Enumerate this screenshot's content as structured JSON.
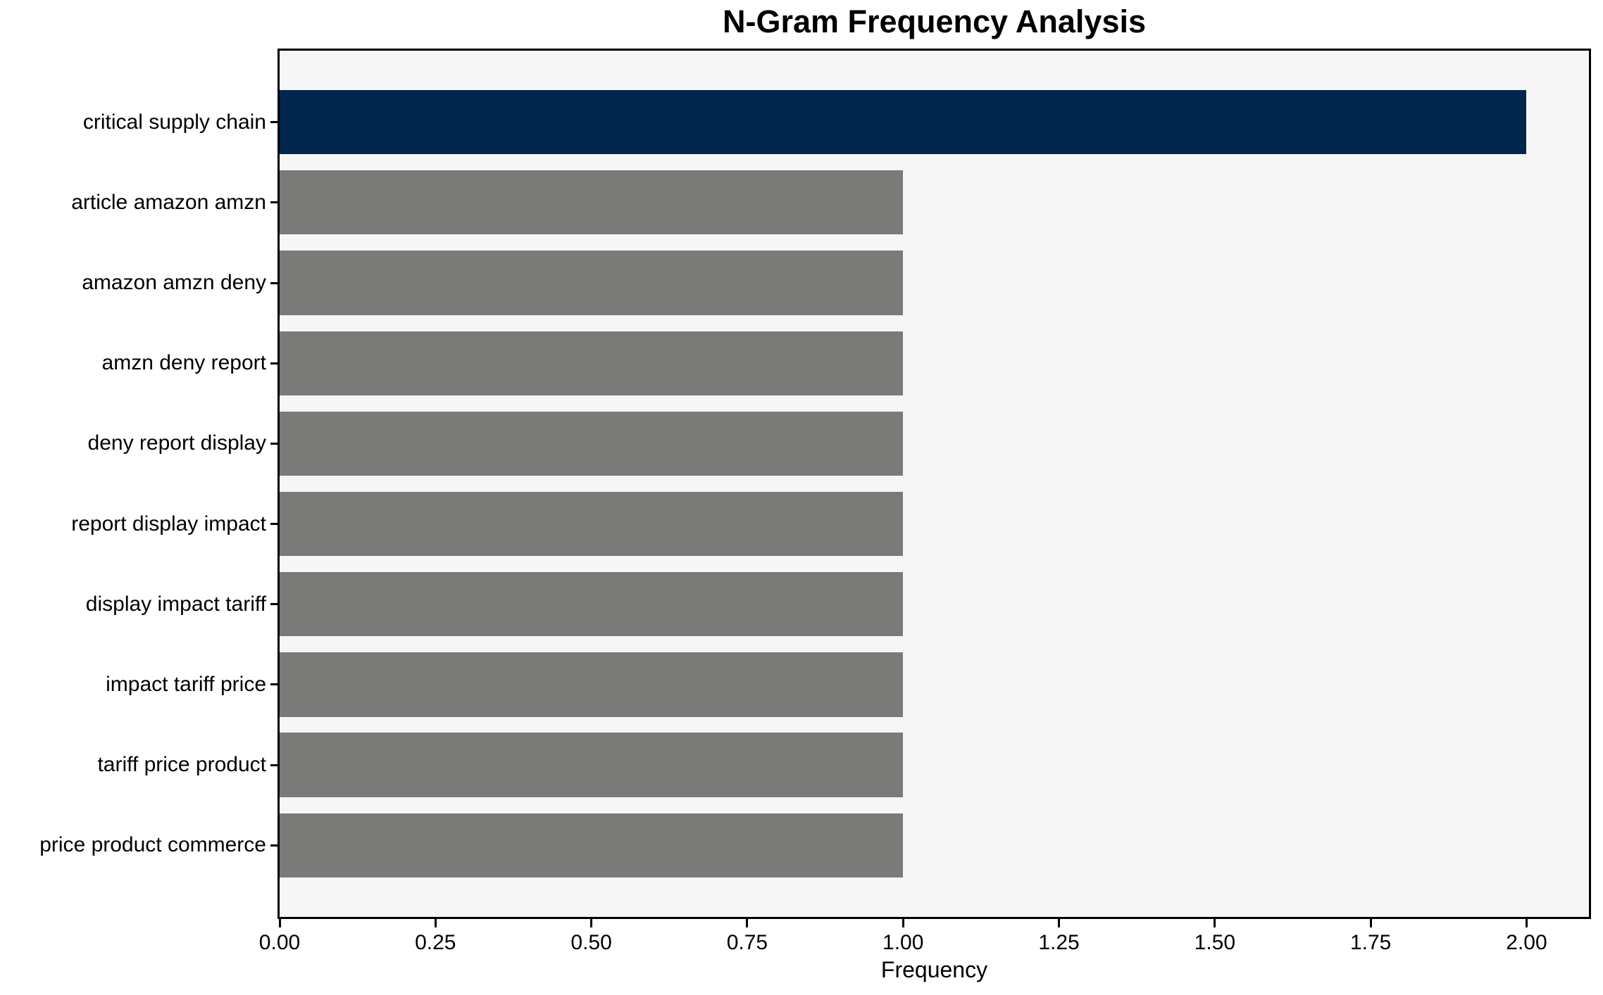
{
  "chart_data": {
    "type": "bar",
    "orientation": "horizontal",
    "title": "N-Gram Frequency Analysis",
    "xlabel": "Frequency",
    "ylabel": "",
    "categories": [
      "critical supply chain",
      "article amazon amzn",
      "amazon amzn deny",
      "amzn deny report",
      "deny report display",
      "report display impact",
      "display impact tariff",
      "impact tariff price",
      "tariff price product",
      "price product commerce"
    ],
    "values": [
      2.0,
      1.0,
      1.0,
      1.0,
      1.0,
      1.0,
      1.0,
      1.0,
      1.0,
      1.0
    ],
    "bar_colors": [
      "#02254e",
      "#7a7a78",
      "#7a7a78",
      "#7a7a78",
      "#7a7a78",
      "#7a7a78",
      "#7a7a78",
      "#7a7a78",
      "#7a7a78",
      "#7a7a78"
    ],
    "xlim": [
      0,
      2.1
    ],
    "xticks": [
      {
        "value": 0.0,
        "label": "0.00"
      },
      {
        "value": 0.25,
        "label": "0.25"
      },
      {
        "value": 0.5,
        "label": "0.50"
      },
      {
        "value": 0.75,
        "label": "0.75"
      },
      {
        "value": 1.0,
        "label": "1.00"
      },
      {
        "value": 1.25,
        "label": "1.25"
      },
      {
        "value": 1.5,
        "label": "1.50"
      },
      {
        "value": 1.75,
        "label": "1.75"
      },
      {
        "value": 2.0,
        "label": "2.00"
      }
    ],
    "grid": false,
    "legend": null,
    "colors": {
      "highlight_bar": "#02254e",
      "default_bar": "#7a7a78",
      "plot_background": "#f6f6f6",
      "figure_background": "#ffffff",
      "spine": "#000000",
      "text": "#000000"
    }
  }
}
